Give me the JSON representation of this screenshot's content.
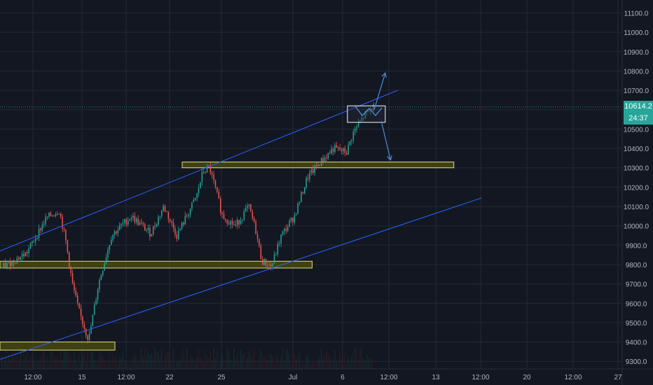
{
  "colors": {
    "background": "#131722",
    "grid": "#242936",
    "axis_text": "#b2b5be",
    "candle_up": "#26a69a",
    "candle_down": "#ef5350",
    "trend_line": "#2962ff",
    "zone_fill": "#4f4f0f",
    "zone_border": "#e0e07a",
    "box_border": "#d1d4dc",
    "arrow": "#4a90d9",
    "price_line": "#26a69a",
    "price_tag": "#26a69a"
  },
  "chart_data": {
    "type": "candlestick",
    "title": "",
    "xlabel": "",
    "ylabel": "",
    "ylim": [
      9260,
      11180
    ],
    "grid": true,
    "y_ticks": [
      "11100.0",
      "11000.0",
      "10900.0",
      "10800.0",
      "10700.0",
      "10600.0",
      "10500.0",
      "10400.0",
      "10300.0",
      "10200.0",
      "10100.0",
      "10000.0",
      "9900.0",
      "9800.0",
      "9700.0",
      "9600.0",
      "9500.0",
      "9400.0",
      "9300.0"
    ],
    "x_ticks": [
      "12:00",
      "15",
      "12:00",
      "22",
      "25",
      "Jul",
      "6",
      "12:00",
      "13",
      "12:00",
      "20",
      "12:00",
      "27"
    ],
    "last_price": "10614.2",
    "countdown": "24:37",
    "price_path": [
      [
        0,
        9780
      ],
      [
        0.04,
        9860
      ],
      [
        0.07,
        10040
      ],
      [
        0.09,
        10080
      ],
      [
        0.1,
        9920
      ],
      [
        0.11,
        9700
      ],
      [
        0.12,
        9560
      ],
      [
        0.135,
        9410
      ],
      [
        0.15,
        9700
      ],
      [
        0.17,
        9950
      ],
      [
        0.2,
        10050
      ],
      [
        0.23,
        9960
      ],
      [
        0.25,
        10100
      ],
      [
        0.27,
        9950
      ],
      [
        0.3,
        10150
      ],
      [
        0.31,
        10280
      ],
      [
        0.32,
        10300
      ],
      [
        0.33,
        10180
      ],
      [
        0.34,
        10050
      ],
      [
        0.36,
        10000
      ],
      [
        0.38,
        10100
      ],
      [
        0.39,
        9990
      ],
      [
        0.4,
        9820
      ],
      [
        0.415,
        9790
      ],
      [
        0.43,
        9950
      ],
      [
        0.45,
        10050
      ],
      [
        0.47,
        10250
      ],
      [
        0.49,
        10330
      ],
      [
        0.51,
        10400
      ],
      [
        0.53,
        10380
      ],
      [
        0.54,
        10480
      ],
      [
        0.555,
        10560
      ],
      [
        0.57,
        10614
      ]
    ],
    "annotations": {
      "upper_channel": [
        [
          9870,
          0
        ],
        [
          10700,
          0.609
        ]
      ],
      "lower_channel": [
        [
          9310,
          0
        ],
        [
          10145,
          0.738
        ]
      ],
      "zones": [
        {
          "price_range": [
            10300,
            10330
          ],
          "x_range": [
            0.279,
            0.695
          ]
        },
        {
          "price_range": [
            9782,
            9817
          ],
          "x_range": [
            0,
            0.478
          ]
        },
        {
          "price_range": [
            9358,
            9400
          ],
          "x_range": [
            0,
            0.176
          ]
        }
      ],
      "box": {
        "price_range": [
          10535,
          10620
        ],
        "x_range": [
          0.532,
          0.59
        ]
      },
      "projection_up": [
        [
          10600,
          0.573
        ],
        [
          10790,
          0.59
        ]
      ],
      "projection_down": [
        [
          10540,
          0.584
        ],
        [
          10340,
          0.598
        ]
      ]
    }
  }
}
